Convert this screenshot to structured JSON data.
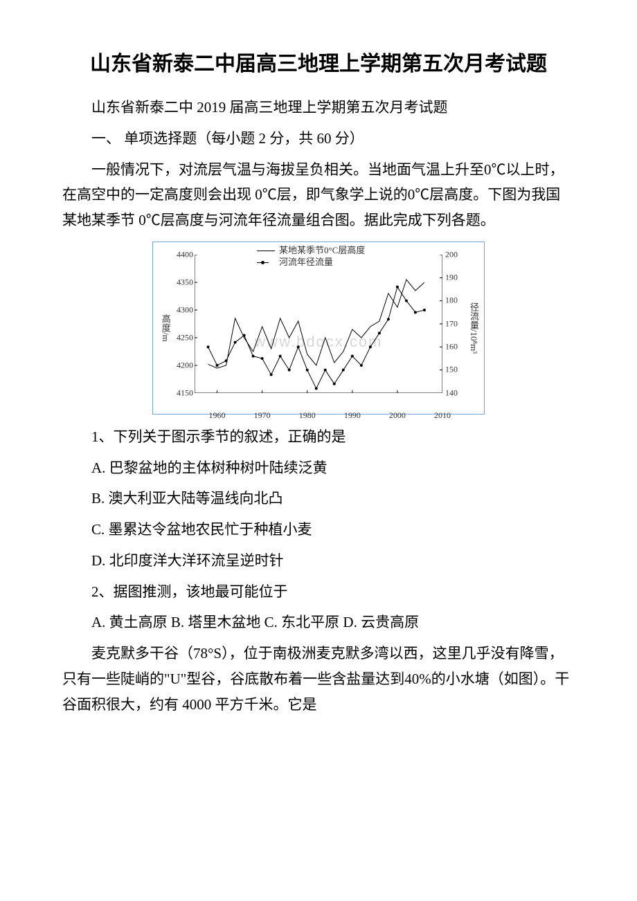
{
  "title": "山东省新泰二中届高三地理上学期第五次月考试题",
  "subtitle": "山东省新泰二中 2019 届高三地理上学期第五次月考试题",
  "section1": "一、 单项选择题（每小题 2 分，共 60 分）",
  "intro1": "一般情况下，对流层气温与海拔呈负相关。当地面气温上升至0℃以上时，在高空中的一定高度则会出现 0℃层，即气象学上说的0℃层高度。下图为我国某地某季节 0℃层高度与河流年径流量组合图。据此完成下列各题。",
  "chart": {
    "legend1": "某地某季节0°C层高度",
    "legend2": "河流年径流量",
    "y_left_label": "高度/m",
    "y_right_label": "径流量/10⁸m³",
    "y_left_ticks": [
      "4400",
      "4350",
      "4300",
      "4250",
      "4200",
      "4150"
    ],
    "y_right_ticks": [
      "200",
      "190",
      "180",
      "170",
      "160",
      "150",
      "140"
    ],
    "x_ticks": [
      "1960",
      "1970",
      "1980",
      "1990",
      "2000",
      "2010"
    ],
    "watermark": "www.bdocx.com",
    "height_series": {
      "color": "#000000",
      "width": 1,
      "points": [
        [
          1958,
          4202
        ],
        [
          1960,
          4195
        ],
        [
          1962,
          4200
        ],
        [
          1964,
          4285
        ],
        [
          1966,
          4250
        ],
        [
          1968,
          4225
        ],
        [
          1970,
          4270
        ],
        [
          1972,
          4230
        ],
        [
          1974,
          4285
        ],
        [
          1976,
          4250
        ],
        [
          1978,
          4280
        ],
        [
          1980,
          4220
        ],
        [
          1982,
          4200
        ],
        [
          1984,
          4250
        ],
        [
          1986,
          4205
        ],
        [
          1988,
          4225
        ],
        [
          1990,
          4265
        ],
        [
          1992,
          4250
        ],
        [
          1994,
          4270
        ],
        [
          1996,
          4280
        ],
        [
          1998,
          4330
        ],
        [
          2000,
          4305
        ],
        [
          2002,
          4355
        ],
        [
          2004,
          4335
        ],
        [
          2006,
          4350
        ]
      ]
    },
    "runoff_series": {
      "color": "#000000",
      "width": 1,
      "marker": "dot",
      "points": [
        [
          1958,
          160
        ],
        [
          1960,
          152
        ],
        [
          1962,
          154
        ],
        [
          1964,
          162
        ],
        [
          1966,
          165
        ],
        [
          1968,
          156
        ],
        [
          1970,
          155
        ],
        [
          1972,
          148
        ],
        [
          1974,
          156
        ],
        [
          1976,
          150
        ],
        [
          1978,
          160
        ],
        [
          1980,
          150
        ],
        [
          1982,
          142
        ],
        [
          1984,
          150
        ],
        [
          1986,
          144
        ],
        [
          1988,
          150
        ],
        [
          1990,
          156
        ],
        [
          1992,
          152
        ],
        [
          1994,
          160
        ],
        [
          1996,
          166
        ],
        [
          1998,
          172
        ],
        [
          2000,
          186
        ],
        [
          2002,
          180
        ],
        [
          2004,
          175
        ],
        [
          2006,
          176
        ]
      ]
    },
    "xlim": [
      1955,
      2010
    ],
    "ylim_left": [
      4150,
      4400
    ],
    "ylim_right": [
      140,
      200
    ]
  },
  "q1": {
    "stem": "1、下列关于图示季节的叙述，正确的是",
    "A": "A. 巴黎盆地的主体树种树叶陆续泛黄",
    "B": "B. 澳大利亚大陆等温线向北凸",
    "C": "C. 墨累达令盆地农民忙于种植小麦",
    "D": "D. 北印度洋大洋环流呈逆时针"
  },
  "q2": {
    "stem": "2、据图推测，该地最可能位于",
    "opts": "A. 黄土高原 B. 塔里木盆地 C. 东北平原 D. 云贵高原"
  },
  "intro2": "麦克默多干谷（78°S），位于南极洲麦克默多湾以西，这里几乎没有降雪，只有一些陡峭的\"U\"型谷，谷底散布着一些含盐量达到40%的小水塘（如图）。干谷面积很大，约有 4000 平方千米。它是"
}
